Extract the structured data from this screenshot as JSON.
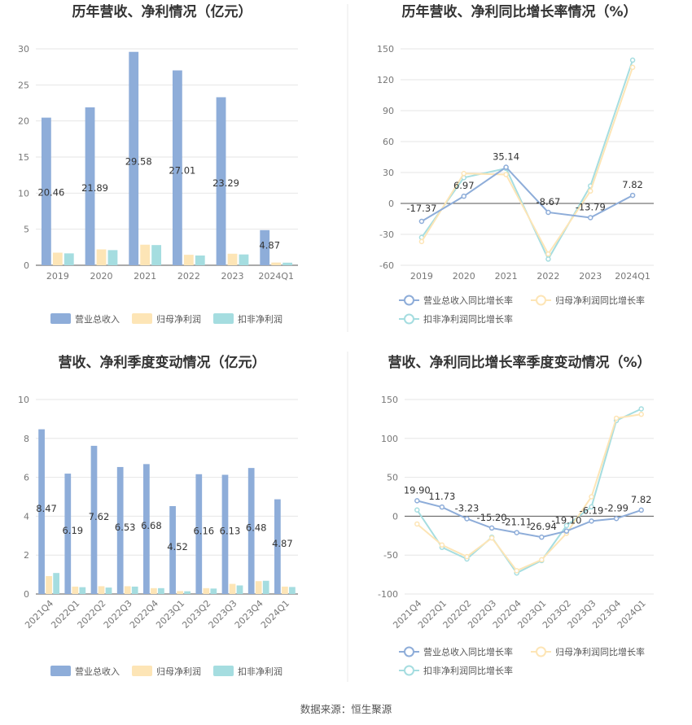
{
  "footer": {
    "source": "数据来源：恒生聚源"
  },
  "chart_data": [
    {
      "id": "c1",
      "type": "bar",
      "title": "历年营收、净利情况（亿元）",
      "categories": [
        "2019",
        "2020",
        "2021",
        "2022",
        "2023",
        "2024Q1"
      ],
      "ylim": [
        0,
        30
      ],
      "yticks": [
        0,
        5,
        10,
        15,
        20,
        25,
        30
      ],
      "series": [
        {
          "name": "营业总收入",
          "color": "#8eadd9",
          "values": [
            20.46,
            21.89,
            29.58,
            27.01,
            23.29,
            4.87
          ],
          "labels": [
            "20.46",
            "21.89",
            "29.58",
            "27.01",
            "23.29",
            "4.87"
          ]
        },
        {
          "name": "归母净利润",
          "color": "#fde5b6",
          "values": [
            1.75,
            2.2,
            2.85,
            1.45,
            1.6,
            0.38
          ]
        },
        {
          "name": "扣非净利润",
          "color": "#a5dde0",
          "values": [
            1.65,
            2.1,
            2.8,
            1.35,
            1.5,
            0.36
          ]
        }
      ]
    },
    {
      "id": "c2",
      "type": "line",
      "title": "历年营收、净利同比增长率情况（%）",
      "categories": [
        "2019",
        "2020",
        "2021",
        "2022",
        "2023",
        "2024Q1"
      ],
      "ylim": [
        -60,
        150
      ],
      "yticks": [
        -60,
        -30,
        0,
        30,
        60,
        90,
        120,
        150
      ],
      "series": [
        {
          "name": "营业总收入同比增长率",
          "color": "#8eadd9",
          "values": [
            -17.37,
            6.97,
            35.14,
            -8.67,
            -13.79,
            7.82
          ],
          "labels": [
            "-17.37",
            "6.97",
            "35.14",
            "-8.67",
            "-13.79",
            "7.82"
          ]
        },
        {
          "name": "归母净利润同比增长率",
          "color": "#fde5b6",
          "values": [
            -37,
            29,
            28,
            -49,
            12,
            132
          ]
        },
        {
          "name": "扣非净利润同比增长率",
          "color": "#a5dde0",
          "values": [
            -33,
            25,
            34,
            -54,
            17,
            139
          ]
        }
      ]
    },
    {
      "id": "c3",
      "type": "bar",
      "title": "营收、净利季度变动情况（亿元）",
      "categories": [
        "2021Q4",
        "2022Q1",
        "2022Q2",
        "2022Q3",
        "2022Q4",
        "2023Q1",
        "2023Q2",
        "2023Q3",
        "2023Q4",
        "2024Q1"
      ],
      "ylim": [
        0,
        10
      ],
      "yticks": [
        0,
        2,
        4,
        6,
        8,
        10
      ],
      "series": [
        {
          "name": "营业总收入",
          "color": "#8eadd9",
          "values": [
            8.47,
            6.19,
            7.62,
            6.53,
            6.68,
            4.52,
            6.16,
            6.13,
            6.48,
            4.87
          ],
          "labels": [
            "8.47",
            "6.19",
            "7.62",
            "6.53",
            "6.68",
            "4.52",
            "6.16",
            "6.13",
            "6.48",
            "4.87"
          ]
        },
        {
          "name": "归母净利润",
          "color": "#fde5b6",
          "values": [
            0.92,
            0.38,
            0.4,
            0.4,
            0.3,
            0.15,
            0.3,
            0.52,
            0.66,
            0.38
          ]
        },
        {
          "name": "扣非净利润",
          "color": "#a5dde0",
          "values": [
            1.08,
            0.35,
            0.33,
            0.38,
            0.3,
            0.14,
            0.28,
            0.44,
            0.68,
            0.36
          ]
        }
      ]
    },
    {
      "id": "c4",
      "type": "line",
      "title": "营收、净利同比增长率季度变动情况（%）",
      "categories": [
        "2021Q4",
        "2022Q1",
        "2022Q2",
        "2022Q3",
        "2022Q4",
        "2023Q1",
        "2023Q2",
        "2023Q3",
        "2023Q4",
        "2024Q1"
      ],
      "ylim": [
        -100,
        150
      ],
      "yticks": [
        -100,
        -50,
        0,
        50,
        100,
        150
      ],
      "series": [
        {
          "name": "营业总收入同比增长率",
          "color": "#8eadd9",
          "values": [
            19.9,
            11.73,
            -3.23,
            -15.2,
            -21.11,
            -26.94,
            -19.1,
            -6.19,
            -2.99,
            7.82
          ],
          "labels": [
            "19.90",
            "11.73",
            "-3.23",
            "-15.20",
            "-21.11",
            "-26.94",
            "-19.10",
            "-6.19",
            "-2.99",
            "7.82"
          ]
        },
        {
          "name": "归母净利润同比增长率",
          "color": "#fde5b6",
          "values": [
            -10,
            -37,
            -52,
            -28,
            -70,
            -56,
            -22,
            25,
            126,
            131
          ]
        },
        {
          "name": "扣非净利润同比增长率",
          "color": "#a5dde0",
          "values": [
            8,
            -40,
            -55,
            -27,
            -73,
            -57,
            -12,
            12,
            123,
            138
          ]
        }
      ]
    }
  ]
}
